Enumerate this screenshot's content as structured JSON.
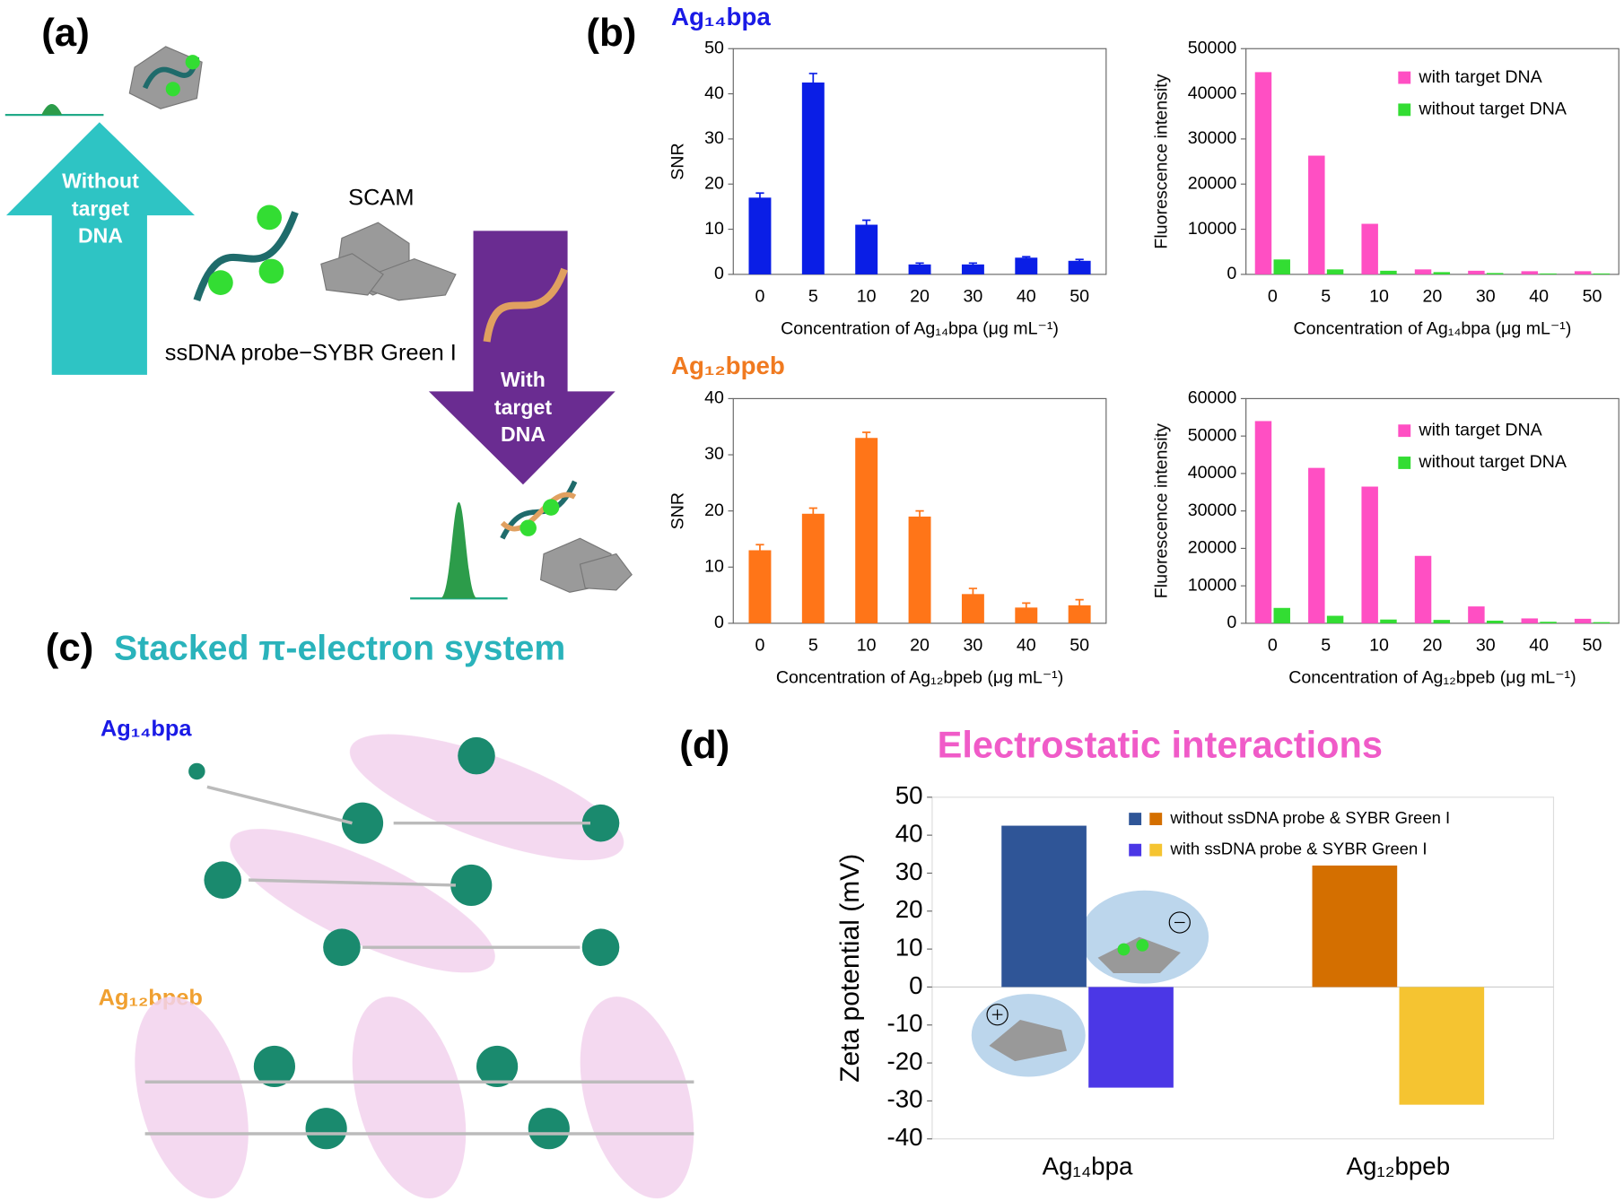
{
  "panels": {
    "a": "(a)",
    "b": "(b)",
    "c": "(c)",
    "d": "(d)"
  },
  "diagram_a": {
    "up_arrow": [
      "Without",
      "target",
      "DNA"
    ],
    "down_arrow": [
      "With",
      "target",
      "DNA"
    ],
    "scam": "SCAM",
    "probe": "ssDNA probe−SYBR Green I"
  },
  "panel_c": {
    "title": "Stacked π-electron system",
    "labels": [
      "Ag₁₄bpa",
      "Ag₁₂bpeb"
    ]
  },
  "chart_data": [
    {
      "type": "bar",
      "title": "Ag₁₄bpa",
      "ylabel": "SNR",
      "xlabel": "Concentration of Ag₁₄bpa (μg mL⁻¹)",
      "categories": [
        "0",
        "5",
        "10",
        "20",
        "30",
        "40",
        "50"
      ],
      "values": [
        17,
        42.5,
        11,
        2.2,
        2.2,
        3.7,
        3
      ],
      "errors": [
        1,
        2,
        1,
        0.3,
        0.3,
        0.2,
        0.3
      ],
      "color": "#0a1ee6",
      "ylim": [
        0,
        50
      ],
      "yticks": [
        0,
        10,
        20,
        30,
        40,
        50
      ]
    },
    {
      "type": "bar",
      "ylabel": "Fluorescence intensity",
      "xlabel": "Concentration of Ag₁₄bpa (μg mL⁻¹)",
      "categories": [
        "0",
        "5",
        "10",
        "20",
        "30",
        "40",
        "50"
      ],
      "series": [
        {
          "name": "with target DNA",
          "color": "#ff4fc3",
          "values": [
            44800,
            26300,
            11200,
            1100,
            800,
            700,
            700
          ]
        },
        {
          "name": "without target DNA",
          "color": "#33dd33",
          "values": [
            3300,
            1100,
            800,
            500,
            300,
            200,
            200
          ]
        }
      ],
      "legend": "upper right",
      "ylim": [
        0,
        50000
      ],
      "yticks": [
        0,
        10000,
        20000,
        30000,
        40000,
        50000
      ]
    },
    {
      "type": "bar",
      "title": "Ag₁₂bpeb",
      "ylabel": "SNR",
      "xlabel": "Concentration of Ag₁₂bpeb (μg mL⁻¹)",
      "categories": [
        "0",
        "5",
        "10",
        "20",
        "30",
        "40",
        "50"
      ],
      "values": [
        13,
        19.5,
        33,
        19,
        5.2,
        2.8,
        3.2
      ],
      "errors": [
        1,
        1,
        1,
        1,
        1,
        0.8,
        1
      ],
      "color": "#ff7518",
      "ylim": [
        0,
        40
      ],
      "yticks": [
        0,
        10,
        20,
        30,
        40
      ]
    },
    {
      "type": "bar",
      "ylabel": "Fluorescence intensity",
      "xlabel": "Concentration of Ag₁₂bpeb (μg mL⁻¹)",
      "categories": [
        "0",
        "5",
        "10",
        "20",
        "30",
        "40",
        "50"
      ],
      "series": [
        {
          "name": "with target DNA",
          "color": "#ff4fc3",
          "values": [
            54000,
            41500,
            36500,
            18000,
            4500,
            1300,
            1200
          ]
        },
        {
          "name": "without target DNA",
          "color": "#33dd33",
          "values": [
            4100,
            2000,
            1000,
            900,
            700,
            400,
            300
          ]
        }
      ],
      "legend": "upper right",
      "ylim": [
        0,
        60000
      ],
      "yticks": [
        0,
        10000,
        20000,
        30000,
        40000,
        50000,
        60000
      ]
    },
    {
      "type": "bar",
      "title": "Electrostatic interactions",
      "ylabel": "Zeta potential (mV)",
      "categories": [
        "Ag₁₄bpa",
        "Ag₁₂bpeb"
      ],
      "series": [
        {
          "name": "without ssDNA probe & SYBR Green I",
          "colors": [
            "#2f5597",
            "#d46f00"
          ],
          "values": [
            42.5,
            32
          ]
        },
        {
          "name": "with ssDNA probe & SYBR Green I",
          "colors": [
            "#4b37e6",
            "#f5c431"
          ],
          "values": [
            -26.5,
            -31
          ]
        }
      ],
      "legend": "upper right",
      "ylim": [
        -40,
        50
      ],
      "yticks": [
        -40,
        -30,
        -20,
        -10,
        0,
        10,
        20,
        30,
        40,
        50
      ]
    }
  ]
}
